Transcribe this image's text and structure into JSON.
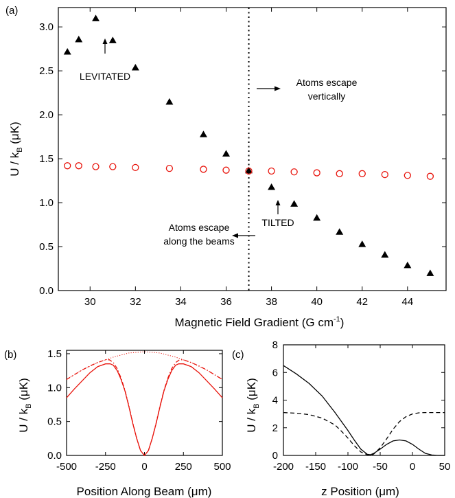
{
  "chart_data": [
    {
      "panel": "(a)",
      "type": "scatter",
      "xlabel": "Magnetic Field Gradient (G cm",
      "xlabel_sup": "-1",
      "xlabel_end": ")",
      "ylabel_main": "U / k",
      "ylabel_sub": "B",
      "ylabel_unit": " (μK)",
      "xlim": [
        28.6,
        45.7
      ],
      "ylim": [
        0,
        3.22
      ],
      "xticks": [
        30,
        32,
        34,
        36,
        38,
        40,
        42,
        44
      ],
      "yticks": [
        0.0,
        0.5,
        1.0,
        1.5,
        2.0,
        2.5,
        3.0
      ],
      "ytick_labels": [
        "0.0",
        "0.5",
        "1.0",
        "1.5",
        "2.0",
        "2.5",
        "3.0"
      ],
      "vline_x": 37,
      "series": [
        {
          "marker": "filled-triangle",
          "color": "#000000",
          "x": [
            29,
            29.5,
            30.25,
            31,
            32,
            33.5,
            35,
            36,
            37,
            38,
            39,
            40,
            41,
            42,
            43,
            44,
            45
          ],
          "y": [
            2.72,
            2.86,
            3.1,
            2.85,
            2.54,
            2.15,
            1.78,
            1.56,
            1.37,
            1.18,
            0.99,
            0.83,
            0.67,
            0.53,
            0.41,
            0.29,
            0.2
          ]
        },
        {
          "marker": "open-circle",
          "color": "#e8140c",
          "x": [
            29,
            29.5,
            30.25,
            31,
            32,
            33.5,
            35,
            36,
            37,
            38,
            39,
            40,
            41,
            42,
            43,
            44,
            45
          ],
          "y": [
            1.42,
            1.42,
            1.41,
            1.41,
            1.4,
            1.39,
            1.38,
            1.37,
            1.36,
            1.36,
            1.35,
            1.34,
            1.33,
            1.33,
            1.32,
            1.31,
            1.3
          ]
        }
      ],
      "annotations": {
        "levitated": "LEVITATED",
        "tilted": "TILTED",
        "escape_vertical_1": "Atoms escape",
        "escape_vertical_2": "vertically",
        "escape_beams_1": "Atoms escape",
        "escape_beams_2": "along the beams"
      }
    },
    {
      "panel": "(b)",
      "type": "line",
      "xlabel": "Position Along Beam (μm)",
      "ylabel_main": "U / k",
      "ylabel_sub": "B",
      "ylabel_unit": " (μK)",
      "xlim": [
        -500,
        500
      ],
      "ylim": [
        0,
        1.55
      ],
      "xticks": [
        -500,
        -250,
        0,
        250,
        500
      ],
      "xtick_labels": [
        "-500",
        "-250",
        "0",
        "250",
        "500"
      ],
      "yticks": [
        0.0,
        0.5,
        1.0,
        1.5
      ],
      "ytick_labels": [
        "0.0",
        "0.5",
        "1.0",
        "1.5"
      ],
      "color": "#e8140c",
      "series": [
        {
          "style": "solid",
          "x": [
            -500,
            -450,
            -400,
            -350,
            -300,
            -250,
            -220,
            -200,
            -175,
            -150,
            -125,
            -100,
            -75,
            -50,
            -25,
            0,
            25,
            50,
            75,
            100,
            125,
            150,
            175,
            200,
            220,
            250,
            300,
            350,
            400,
            450,
            500
          ],
          "y": [
            0.85,
            0.98,
            1.1,
            1.22,
            1.31,
            1.35,
            1.35,
            1.33,
            1.25,
            1.12,
            0.95,
            0.72,
            0.47,
            0.25,
            0.07,
            0.0,
            0.07,
            0.25,
            0.47,
            0.72,
            0.95,
            1.12,
            1.25,
            1.33,
            1.35,
            1.35,
            1.31,
            1.22,
            1.1,
            0.98,
            0.85
          ]
        },
        {
          "style": "dash-dot",
          "x": [
            -500,
            -450,
            -400,
            -350,
            -300,
            -250,
            -225,
            -200,
            -175,
            -150,
            -125,
            -100,
            -75,
            -50,
            -25,
            0,
            25,
            50,
            75,
            100,
            125,
            150,
            175,
            200,
            225,
            250,
            300,
            350,
            400,
            450,
            500
          ],
          "y": [
            1.12,
            1.19,
            1.26,
            1.32,
            1.37,
            1.41,
            1.41,
            1.37,
            1.28,
            1.14,
            0.96,
            0.73,
            0.48,
            0.25,
            0.07,
            0.0,
            0.07,
            0.25,
            0.48,
            0.73,
            0.96,
            1.14,
            1.28,
            1.37,
            1.41,
            1.41,
            1.37,
            1.32,
            1.26,
            1.19,
            1.12
          ]
        },
        {
          "style": "dotted",
          "x": [
            -500,
            -400,
            -300,
            -200,
            -100,
            0,
            100,
            200,
            300,
            400,
            500
          ],
          "y": [
            1.12,
            1.26,
            1.37,
            1.45,
            1.51,
            1.53,
            1.51,
            1.45,
            1.37,
            1.26,
            1.12
          ]
        }
      ]
    },
    {
      "panel": "(c)",
      "type": "line",
      "xlabel": "z Position (μm)",
      "ylabel_main": "U / k",
      "ylabel_sub": "B",
      "ylabel_unit": " (μK)",
      "xlim": [
        -200,
        50
      ],
      "ylim": [
        0,
        8
      ],
      "xticks": [
        -200,
        -150,
        -100,
        -50,
        0,
        50
      ],
      "xtick_labels": [
        "-200",
        "-150",
        "-100",
        "-50",
        "0",
        "50"
      ],
      "yticks": [
        0,
        2,
        4,
        6,
        8
      ],
      "ytick_labels": [
        "0",
        "2",
        "4",
        "6",
        "8"
      ],
      "color": "#000000",
      "series": [
        {
          "style": "solid",
          "x": [
            -200,
            -180,
            -160,
            -140,
            -120,
            -100,
            -90,
            -80,
            -70,
            -65,
            -60,
            -50,
            -40,
            -30,
            -20,
            -10,
            0,
            10,
            20,
            30,
            40,
            50
          ],
          "y": [
            6.5,
            5.9,
            5.2,
            4.3,
            3.1,
            1.8,
            1.1,
            0.45,
            0.08,
            0.05,
            0.15,
            0.45,
            0.8,
            1.05,
            1.12,
            1.05,
            0.8,
            0.45,
            0.15,
            0.03,
            0.0,
            0.0
          ]
        },
        {
          "style": "dashed",
          "x": [
            -200,
            -180,
            -160,
            -140,
            -120,
            -110,
            -100,
            -90,
            -80,
            -70,
            -65,
            -60,
            -50,
            -40,
            -30,
            -20,
            -10,
            0,
            10,
            20,
            30,
            40,
            50
          ],
          "y": [
            3.1,
            3.05,
            2.95,
            2.7,
            2.2,
            1.75,
            1.25,
            0.7,
            0.25,
            0.05,
            0.02,
            0.1,
            0.55,
            1.2,
            1.9,
            2.45,
            2.8,
            3.0,
            3.08,
            3.1,
            3.1,
            3.1,
            3.1
          ]
        }
      ]
    }
  ]
}
